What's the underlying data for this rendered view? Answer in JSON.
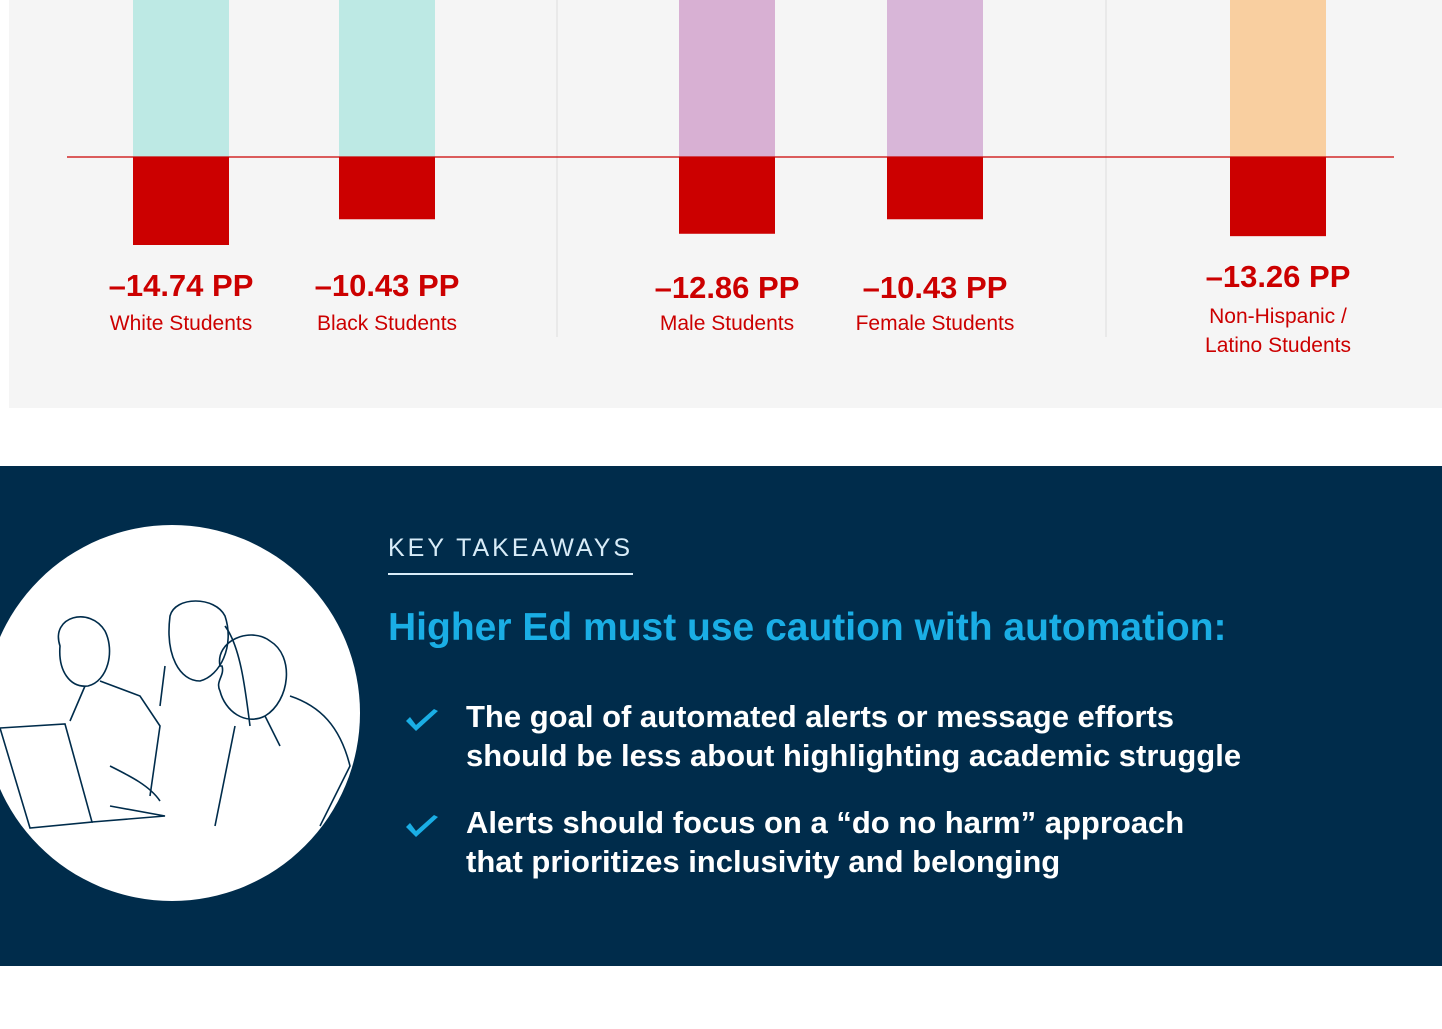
{
  "chart_data": {
    "type": "bar",
    "categories": [
      "White Students",
      "Black Students",
      "Male Students",
      "Female Students",
      "Non-Hispanic / Latino Students"
    ],
    "values": [
      -14.74,
      -10.43,
      -12.86,
      -10.43,
      -13.26
    ],
    "value_labels": [
      "–14.74 PP",
      "–10.43 PP",
      "–12.86 PP",
      "–10.43 PP",
      "–13.26 PP"
    ],
    "color": "#cc0000"
  },
  "takeaways": {
    "eyebrow": "KEY TAKEAWAYS",
    "heading": "Higher Ed must use caution with automation:",
    "bullets": [
      {
        "lines": [
          "The goal of automated alerts or message efforts",
          "should be less about highlighting academic struggle"
        ]
      },
      {
        "lines": [
          "Alerts should focus on a “do no harm” approach",
          "that prioritizes inclusivity and belonging"
        ]
      }
    ]
  }
}
